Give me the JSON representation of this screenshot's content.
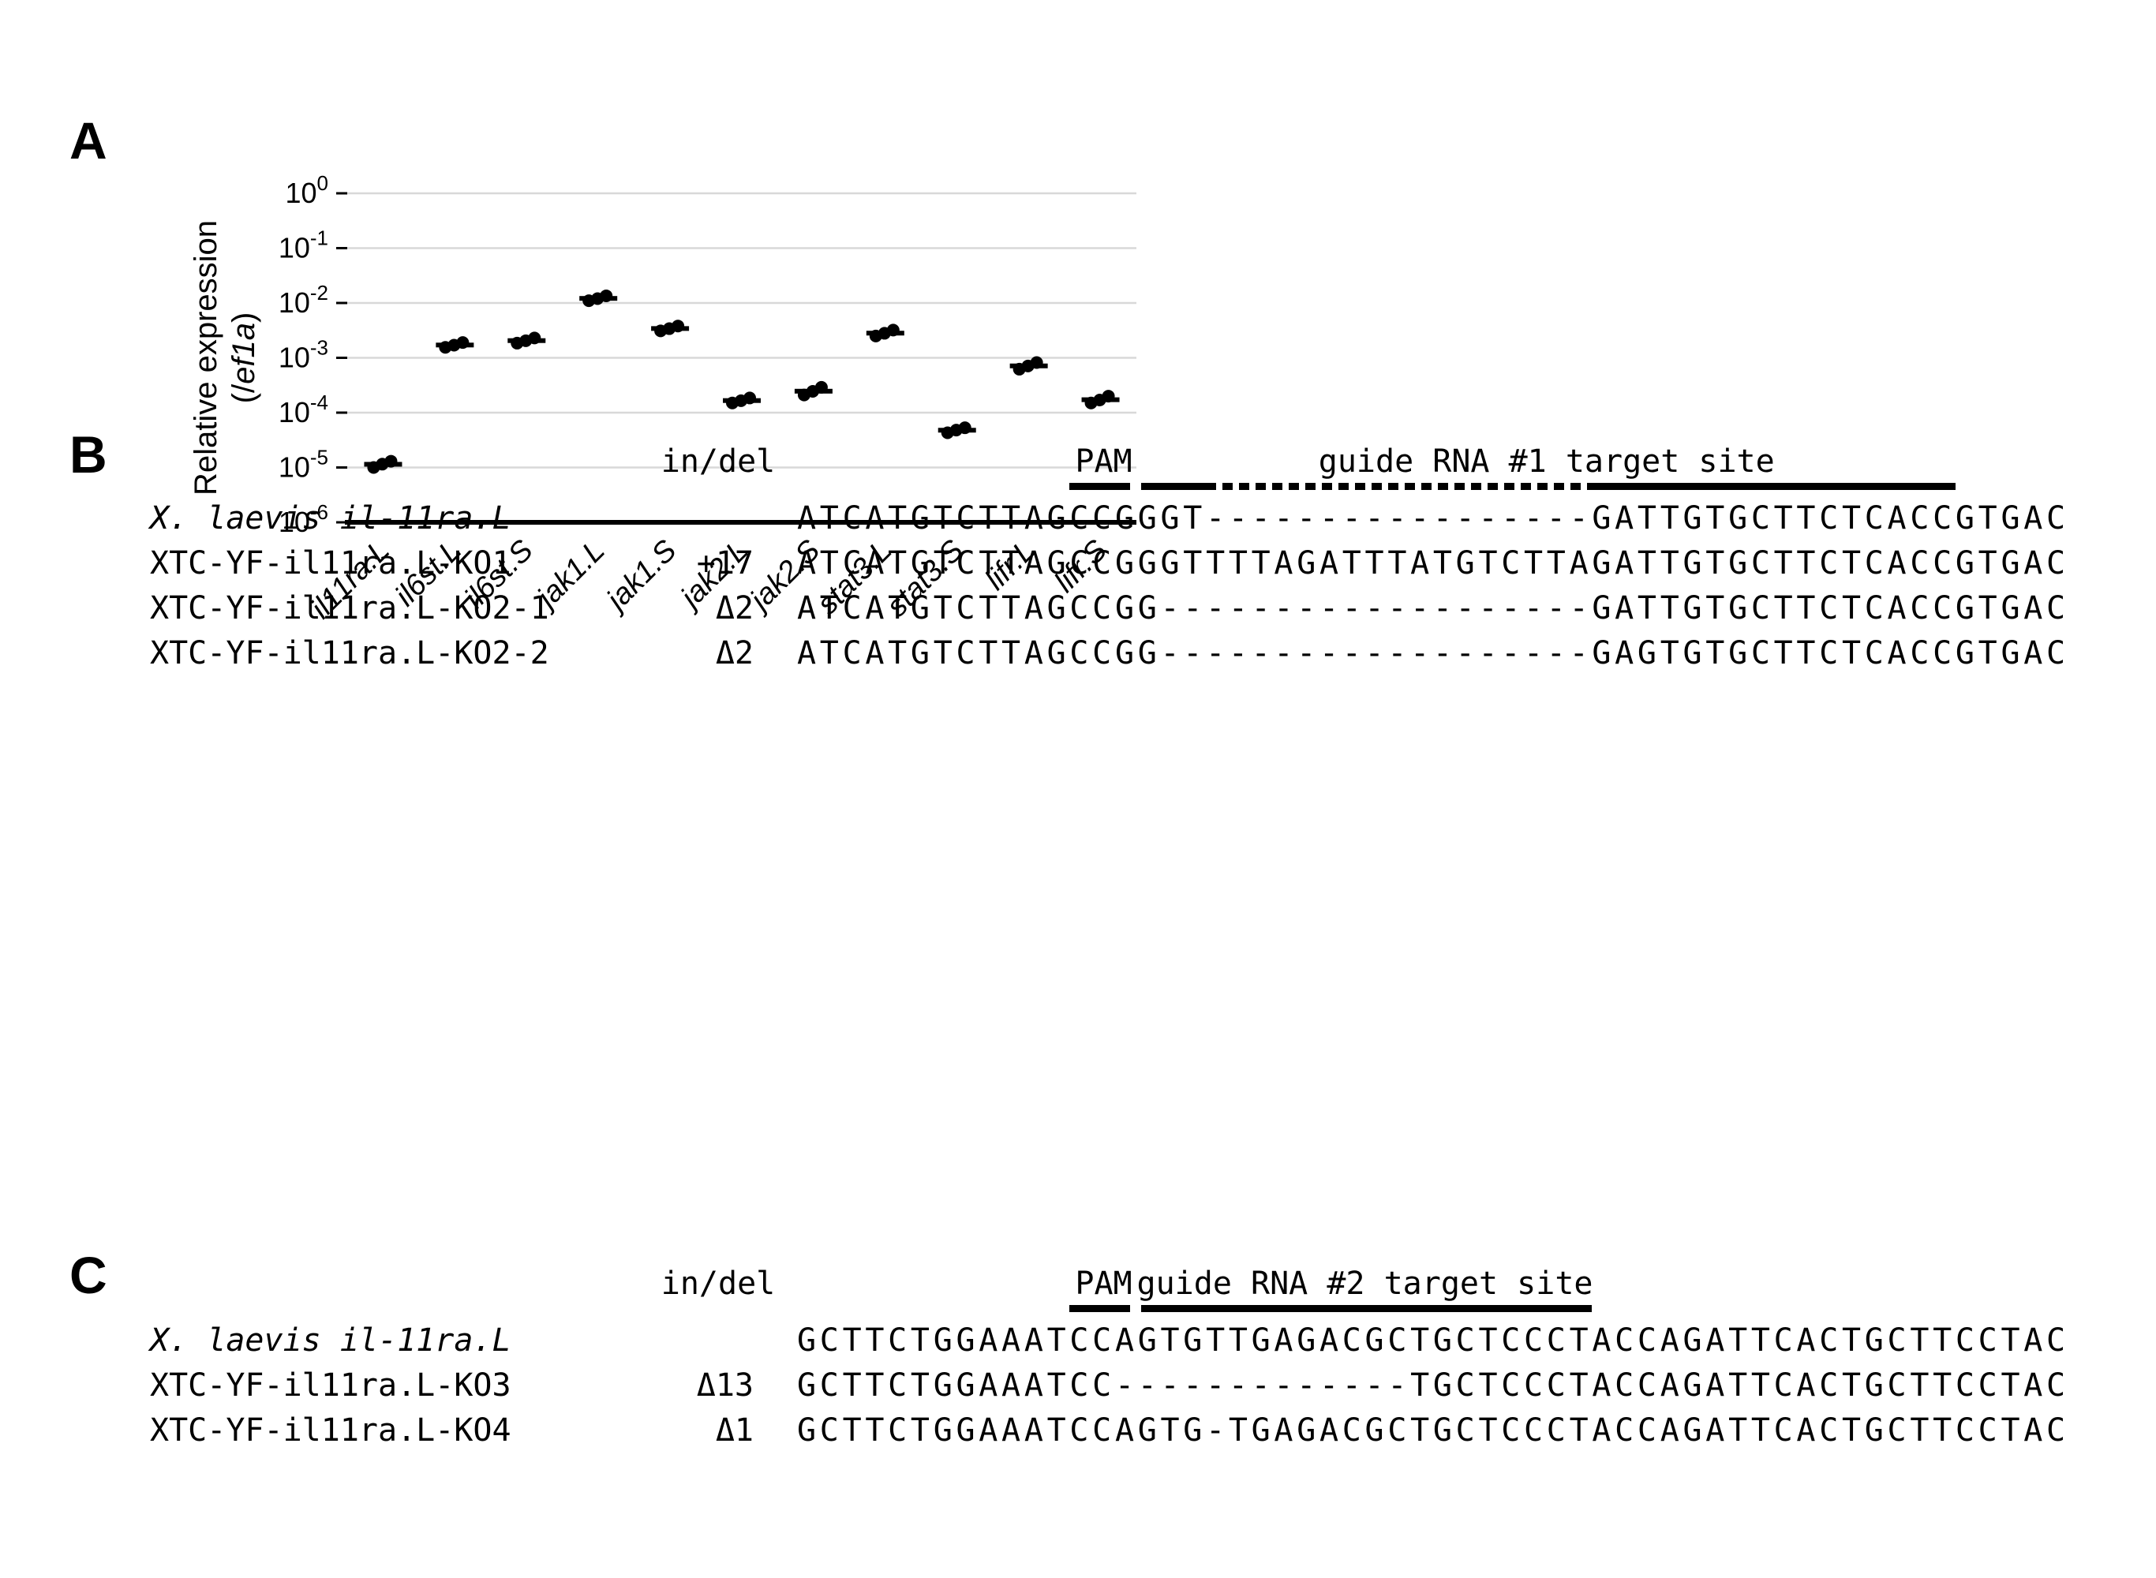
{
  "panel_a": {
    "label": "A"
  },
  "chart_data": {
    "type": "scatter",
    "title": "",
    "y_scale": "log10",
    "ylim": [
      1e-06,
      1
    ],
    "y_tick_exponents": [
      0,
      -1,
      -2,
      -3,
      -4,
      -5,
      -6
    ],
    "ylabel_line1": "Relative expression",
    "ylabel_line2": {
      "pre": "(/",
      "italic": "ef1a",
      "post": ")"
    },
    "grid": "horizontal",
    "legend": null,
    "categories": [
      "il11ra.L",
      "il6st.L",
      "il6st.S",
      "jak1.L",
      "jak1.S",
      "jak2.L",
      "jak2.S",
      "stat3.L",
      "stat3.S",
      "lifr.L",
      "lifr.S"
    ],
    "replicate_values": [
      [
        1e-05,
        1.3e-05,
        1.15e-05
      ],
      [
        0.00155,
        0.0019,
        0.0017
      ],
      [
        0.00185,
        0.0023,
        0.00205
      ],
      [
        0.011,
        0.0135,
        0.012
      ],
      [
        0.0031,
        0.0038,
        0.0034
      ],
      [
        0.00015,
        0.000185,
        0.000165
      ],
      [
        0.00021,
        0.00029,
        0.000245
      ],
      [
        0.0025,
        0.0032,
        0.0028
      ],
      [
        4.3e-05,
        5.3e-05,
        4.8e-05
      ],
      [
        0.00062,
        0.00082,
        0.00071
      ],
      [
        0.00015,
        0.0002,
        0.00017
      ]
    ]
  },
  "panel_b": {
    "label": "B",
    "indel_header": "in/del",
    "pam_label": "PAM",
    "guide_label": "guide RNA #1 target site",
    "pam_range": [
      12,
      15
    ],
    "guide_segments": [
      {
        "style": "solid",
        "range": [
          15,
          18
        ]
      },
      {
        "style": "dotted",
        "range": [
          18,
          35
        ]
      },
      {
        "style": "solid",
        "range": [
          35,
          51
        ]
      }
    ],
    "rows": [
      {
        "name": "X. laevis il-11ra.L",
        "italic": true,
        "indel": "",
        "seq": "ATCATGTCTTAGCCGGGT-----------------GATTGTGCTTCTCACCGTGAC"
      },
      {
        "name": "XTC-YF-il11ra.L-KO1",
        "italic": false,
        "indel": "+17",
        "seq": "ATCATGTCTTAGCCGGGTTTTAGATTTATGTCTTAGATTGTGCTTCTCACCGTGAC"
      },
      {
        "name": "XTC-YF-il11ra.L-KO2-1",
        "italic": false,
        "indel": "Δ2",
        "seq": "ATCATGTCTTAGCCGG-------------------GATTGTGCTTCTCACCGTGAC"
      },
      {
        "name": "XTC-YF-il11ra.L-KO2-2",
        "italic": false,
        "indel": "Δ2",
        "seq": "ATCATGTCTTAGCCGG-------------------GAGTGTGCTTCTCACCGTGAC"
      }
    ]
  },
  "panel_c": {
    "label": "C",
    "indel_header": "in/del",
    "pam_label": "PAM",
    "guide_label": "guide RNA #2 target site",
    "pam_range": [
      12,
      15
    ],
    "guide_segments": [
      {
        "style": "solid",
        "range": [
          15,
          35
        ]
      }
    ],
    "rows": [
      {
        "name": "X. laevis il-11ra.L",
        "italic": true,
        "indel": "",
        "seq": "GCTTCTGGAAATCCAGTGTTGAGACGCTGCTCCCTACCAGATTCACTGCTTCCTAC"
      },
      {
        "name": "XTC-YF-il11ra.L-KO3",
        "italic": false,
        "indel": "Δ13",
        "seq": "GCTTCTGGAAATCC-------------TGCTCCCTACCAGATTCACTGCTTCCTAC"
      },
      {
        "name": "XTC-YF-il11ra.L-KO4",
        "italic": false,
        "indel": "Δ1",
        "seq": "GCTTCTGGAAATCCAGTG-TGAGACGCTGCTCCCTACCAGATTCACTGCTTCCTAC"
      }
    ]
  }
}
